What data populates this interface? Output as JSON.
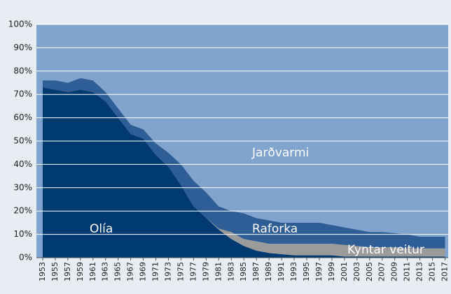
{
  "chart_data": {
    "type": "stacked_area",
    "x": [
      1953,
      1955,
      1957,
      1959,
      1961,
      1963,
      1965,
      1967,
      1969,
      1971,
      1973,
      1975,
      1977,
      1979,
      1981,
      1983,
      1985,
      1987,
      1989,
      1991,
      1993,
      1995,
      1997,
      1999,
      2001,
      2003,
      2005,
      2007,
      2009,
      2011,
      2013,
      2015,
      2017
    ],
    "xlim": [
      1952,
      2017.5
    ],
    "xticks": [
      1953,
      1955,
      1957,
      1959,
      1961,
      1963,
      1965,
      1967,
      1969,
      1971,
      1973,
      1975,
      1977,
      1979,
      1981,
      1983,
      1985,
      1987,
      1989,
      1991,
      1993,
      1995,
      1997,
      1999,
      2001,
      2003,
      2005,
      2007,
      2009,
      2011,
      2013,
      2015,
      2017
    ],
    "ylim": [
      0,
      100
    ],
    "yticks": [
      {
        "value": 0,
        "label": "0%"
      },
      {
        "value": 10,
        "label": "10%"
      },
      {
        "value": 20,
        "label": "20%"
      },
      {
        "value": 30,
        "label": "30%"
      },
      {
        "value": 40,
        "label": "40%"
      },
      {
        "value": 50,
        "label": "50%"
      },
      {
        "value": 60,
        "label": "60%"
      },
      {
        "value": 70,
        "label": "70%"
      },
      {
        "value": 80,
        "label": "80%"
      },
      {
        "value": 90,
        "label": "90%"
      },
      {
        "value": 100,
        "label": "100%"
      }
    ],
    "grid": true,
    "series": [
      {
        "name": "Olía",
        "color": "#003a70",
        "values": [
          73,
          72,
          71,
          72,
          71,
          67,
          60,
          53,
          51,
          44,
          39,
          31,
          22,
          17,
          12,
          8,
          5,
          3,
          2,
          1.5,
          1,
          1,
          1,
          1,
          0.5,
          0.5,
          0.5,
          0.5,
          0.5,
          0.5,
          0.5,
          0.5,
          0.5
        ]
      },
      {
        "name": "Kyntar veitur",
        "color": "#9b9b9b",
        "values": [
          0,
          0,
          0,
          0,
          0,
          0,
          0,
          0,
          0,
          0,
          0,
          0,
          0,
          0,
          0.5,
          3,
          3,
          4,
          4,
          4.5,
          5,
          5,
          5,
          5,
          5,
          4.5,
          4,
          4,
          4,
          3.5,
          3.5,
          3.5,
          3.5
        ]
      },
      {
        "name": "Raforka",
        "color": "#2f5d95",
        "values": [
          3,
          4,
          4,
          5,
          5,
          4,
          4,
          4,
          4,
          5,
          6,
          9,
          11,
          11,
          9.5,
          9,
          11,
          10,
          10,
          9,
          9,
          9,
          9,
          8,
          7.5,
          7,
          6.5,
          6.5,
          6,
          6,
          5,
          5,
          5
        ]
      },
      {
        "name": "Jarðvarmi",
        "color": "#80a4cd",
        "values": [
          24,
          24,
          25,
          23,
          24,
          29,
          36,
          43,
          45,
          51,
          55,
          60,
          67,
          72,
          78,
          80,
          81,
          83,
          84,
          85,
          85,
          85,
          85,
          86,
          87,
          88,
          89,
          89,
          89.5,
          90,
          91,
          91,
          91
        ]
      }
    ]
  }
}
